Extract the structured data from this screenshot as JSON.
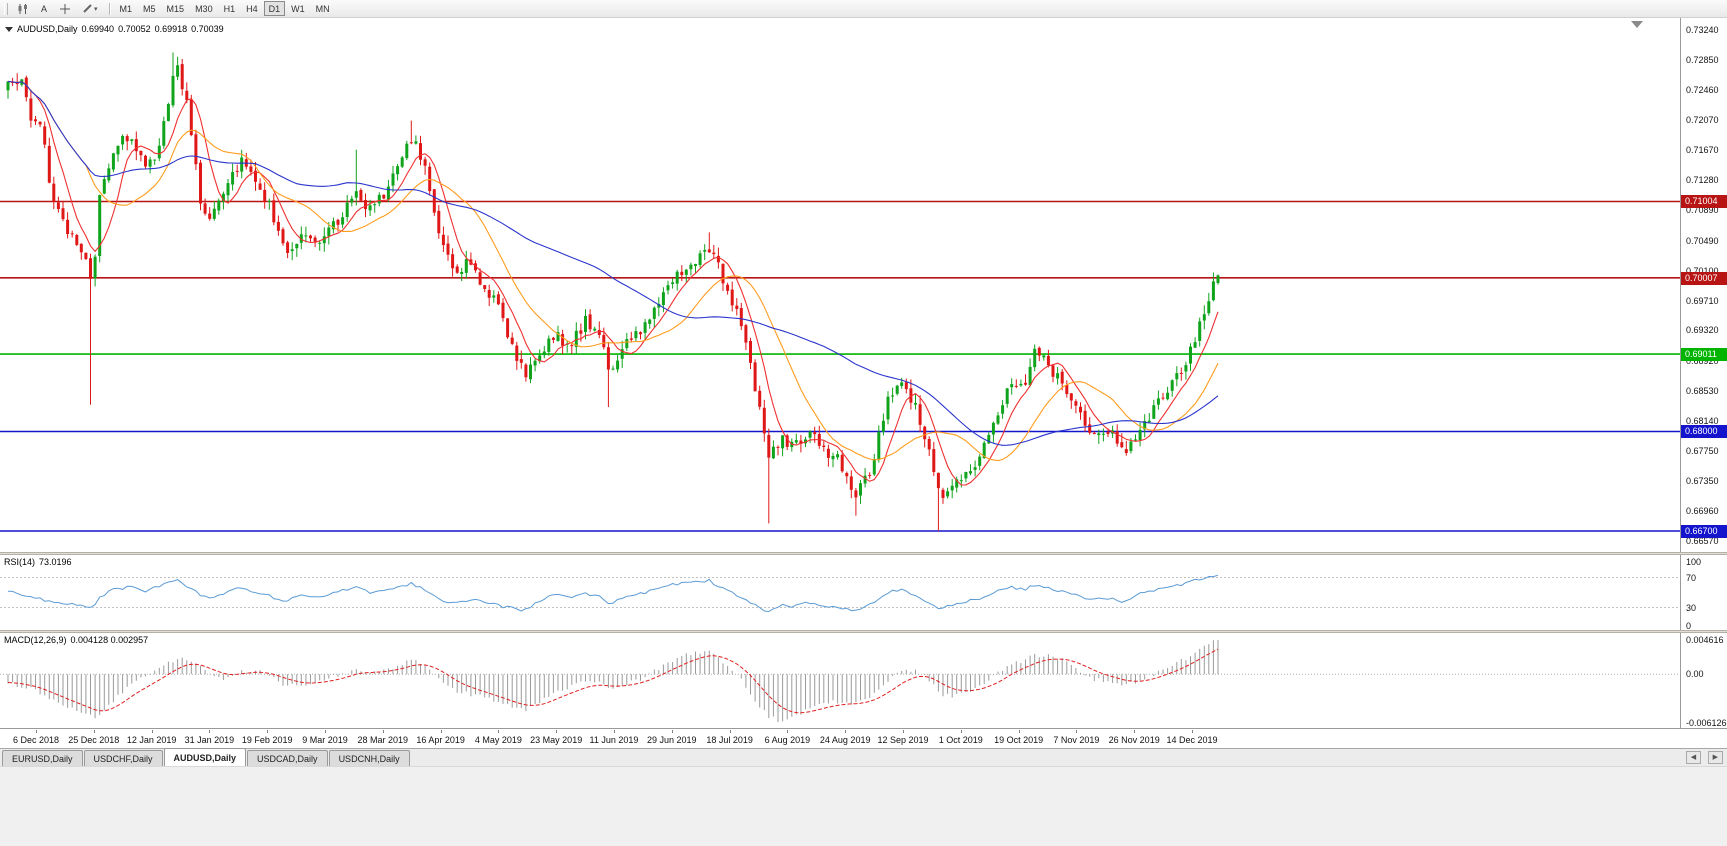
{
  "toolbar": {
    "tools": [
      {
        "name": "candlestick-chart-icon"
      },
      {
        "name": "text-annotation-tool",
        "label": "A"
      },
      {
        "name": "crosshair-tool"
      },
      {
        "name": "drawing-tools-dropdown"
      }
    ],
    "timeframes": [
      "M1",
      "M5",
      "M15",
      "M30",
      "H1",
      "H4",
      "D1",
      "W1",
      "MN"
    ],
    "active_timeframe": "D1"
  },
  "chart": {
    "symbol_period": "AUDUSD,Daily",
    "open": "0.69940",
    "high": "0.70052",
    "low": "0.69918",
    "close": "0.70039"
  },
  "price_scale": {
    "labels": [
      "0.73240",
      "0.72850",
      "0.72460",
      "0.72070",
      "0.71670",
      "0.71280",
      "0.70890",
      "0.70490",
      "0.70100",
      "0.69710",
      "0.69320",
      "0.68920",
      "0.68530",
      "0.68140",
      "0.67750",
      "0.67350",
      "0.66960",
      "0.66570"
    ]
  },
  "rsi": {
    "name": "RSI(14)",
    "value": "73.0196",
    "levels": [
      "100",
      "70",
      "30",
      "0"
    ]
  },
  "macd": {
    "name": "MACD(12,26,9)",
    "values": "0.004128 0.002957",
    "scale_labels": [
      "0.004616",
      "0.00",
      "-0.006126"
    ]
  },
  "date_axis": [
    "6 Dec 2018",
    "25 Dec 2018",
    "12 Jan 2019",
    "31 Jan 2019",
    "19 Feb 2019",
    "9 Mar 2019",
    "28 Mar 2019",
    "16 Apr 2019",
    "4 May 2019",
    "23 May 2019",
    "11 Jun 2019",
    "29 Jun 2019",
    "18 Jul 2019",
    "6 Aug 2019",
    "24 Aug 2019",
    "12 Sep 2019",
    "1 Oct 2019",
    "19 Oct 2019",
    "7 Nov 2019",
    "26 Nov 2019",
    "14 Dec 2019"
  ],
  "tabs": {
    "items": [
      {
        "label": "EURUSD,Daily",
        "active": false
      },
      {
        "label": "USDCHF,Daily",
        "active": false
      },
      {
        "label": "AUDUSD,Daily",
        "active": true
      },
      {
        "label": "USDCAD,Daily",
        "active": false
      },
      {
        "label": "USDCNH,Daily",
        "active": false
      }
    ]
  },
  "chart_data": {
    "type": "candlestick",
    "symbol": "AUDUSD",
    "period": "Daily",
    "num_candles": 265,
    "last_candle": {
      "o": 0.6994,
      "h": 0.70052,
      "l": 0.69918,
      "c": 0.70039
    },
    "axis": {
      "price_top": 0.734,
      "price_bottom": 0.66426
    },
    "colors": {
      "up": "#10a41c",
      "down": "#df1717",
      "rsi_line": "#5b9bd5",
      "macd_hist": "#9a9a9a",
      "macd_signal": "#e02020"
    },
    "moving_averages": [
      {
        "period": 7,
        "color": "#f03030"
      },
      {
        "period": 18,
        "color": "#ff9c1e"
      },
      {
        "period": 55,
        "color": "#2a35cc"
      }
    ],
    "horizontal_lines": [
      {
        "price": 0.71004,
        "label": "0.71004",
        "color": "#b81414"
      },
      {
        "price": 0.70007,
        "label": "0.70007",
        "color": "#b81414"
      },
      {
        "price": 0.69011,
        "label": "0.69011",
        "color": "#00b400"
      },
      {
        "price": 0.68,
        "label": "0.68000",
        "color": "#1414cc"
      },
      {
        "price": 0.667,
        "label": "0.66700",
        "color": "#1414cc"
      }
    ],
    "price_path": [
      [
        0,
        0.725
      ],
      [
        0.01,
        0.726
      ],
      [
        0.018,
        0.7215
      ],
      [
        0.028,
        0.72
      ],
      [
        0.035,
        0.712
      ],
      [
        0.043,
        0.708
      ],
      [
        0.051,
        0.706
      ],
      [
        0.06,
        0.704
      ],
      [
        0.066,
        0.702
      ],
      [
        0.07,
        0.699
      ],
      [
        0.076,
        0.711
      ],
      [
        0.088,
        0.717
      ],
      [
        0.101,
        0.719
      ],
      [
        0.113,
        0.7145
      ],
      [
        0.122,
        0.716
      ],
      [
        0.132,
        0.723
      ],
      [
        0.138,
        0.728
      ],
      [
        0.146,
        0.7245
      ],
      [
        0.155,
        0.715
      ],
      [
        0.159,
        0.71
      ],
      [
        0.167,
        0.708
      ],
      [
        0.179,
        0.712
      ],
      [
        0.192,
        0.7155
      ],
      [
        0.204,
        0.713
      ],
      [
        0.217,
        0.709
      ],
      [
        0.229,
        0.7035
      ],
      [
        0.245,
        0.706
      ],
      [
        0.258,
        0.705
      ],
      [
        0.274,
        0.708
      ],
      [
        0.287,
        0.7115
      ],
      [
        0.299,
        0.709
      ],
      [
        0.312,
        0.711
      ],
      [
        0.324,
        0.715
      ],
      [
        0.334,
        0.7185
      ],
      [
        0.345,
        0.714
      ],
      [
        0.357,
        0.706
      ],
      [
        0.369,
        0.701
      ],
      [
        0.382,
        0.702
      ],
      [
        0.394,
        0.699
      ],
      [
        0.407,
        0.6955
      ],
      [
        0.419,
        0.6905
      ],
      [
        0.427,
        0.6875
      ],
      [
        0.44,
        0.69
      ],
      [
        0.452,
        0.693
      ],
      [
        0.464,
        0.691
      ],
      [
        0.477,
        0.6945
      ],
      [
        0.489,
        0.693
      ],
      [
        0.497,
        0.6875
      ],
      [
        0.51,
        0.692
      ],
      [
        0.522,
        0.693
      ],
      [
        0.535,
        0.696
      ],
      [
        0.547,
        0.699
      ],
      [
        0.56,
        0.7015
      ],
      [
        0.572,
        0.703
      ],
      [
        0.58,
        0.704
      ],
      [
        0.588,
        0.701
      ],
      [
        0.601,
        0.696
      ],
      [
        0.613,
        0.689
      ],
      [
        0.621,
        0.683
      ],
      [
        0.628,
        0.6765
      ],
      [
        0.638,
        0.679
      ],
      [
        0.65,
        0.678
      ],
      [
        0.663,
        0.68
      ],
      [
        0.675,
        0.6775
      ],
      [
        0.688,
        0.676
      ],
      [
        0.7,
        0.672
      ],
      [
        0.712,
        0.6745
      ],
      [
        0.725,
        0.683
      ],
      [
        0.737,
        0.687
      ],
      [
        0.75,
        0.683
      ],
      [
        0.762,
        0.677
      ],
      [
        0.77,
        0.6715
      ],
      [
        0.779,
        0.6725
      ],
      [
        0.791,
        0.675
      ],
      [
        0.803,
        0.6765
      ],
      [
        0.816,
        0.681
      ],
      [
        0.828,
        0.687
      ],
      [
        0.84,
        0.6855
      ],
      [
        0.849,
        0.6915
      ],
      [
        0.861,
        0.688
      ],
      [
        0.874,
        0.686
      ],
      [
        0.886,
        0.682
      ],
      [
        0.898,
        0.679
      ],
      [
        0.911,
        0.68
      ],
      [
        0.923,
        0.677
      ],
      [
        0.936,
        0.681
      ],
      [
        0.948,
        0.683
      ],
      [
        0.96,
        0.6855
      ],
      [
        0.973,
        0.6885
      ],
      [
        0.981,
        0.692
      ],
      [
        0.989,
        0.696
      ],
      [
        0.995,
        0.699
      ],
      [
        1,
        0.7004
      ]
    ],
    "wick_events": [
      {
        "t": 0.07,
        "low": 0.6835
      },
      {
        "t": 0.138,
        "high": 0.7295
      },
      {
        "t": 0.287,
        "high": 0.7168
      },
      {
        "t": 0.334,
        "high": 0.7206
      },
      {
        "t": 0.427,
        "low": 0.6865
      },
      {
        "t": 0.497,
        "low": 0.6832
      },
      {
        "t": 0.58,
        "high": 0.706
      },
      {
        "t": 0.628,
        "low": 0.668
      },
      {
        "t": 0.7,
        "low": 0.669
      },
      {
        "t": 0.77,
        "low": 0.667
      }
    ],
    "rsi": {
      "period": 14,
      "current": 73.0196,
      "levels": [
        70,
        30
      ],
      "path": [
        [
          0,
          52
        ],
        [
          0.018,
          45
        ],
        [
          0.035,
          38
        ],
        [
          0.051,
          35
        ],
        [
          0.066,
          32
        ],
        [
          0.07,
          29
        ],
        [
          0.076,
          44
        ],
        [
          0.088,
          54
        ],
        [
          0.101,
          58
        ],
        [
          0.113,
          51
        ],
        [
          0.132,
          63
        ],
        [
          0.138,
          67
        ],
        [
          0.146,
          61
        ],
        [
          0.159,
          47
        ],
        [
          0.167,
          43
        ],
        [
          0.179,
          50
        ],
        [
          0.192,
          56
        ],
        [
          0.204,
          51
        ],
        [
          0.217,
          45
        ],
        [
          0.229,
          38
        ],
        [
          0.245,
          47
        ],
        [
          0.258,
          45
        ],
        [
          0.274,
          52
        ],
        [
          0.287,
          58
        ],
        [
          0.299,
          49
        ],
        [
          0.312,
          53
        ],
        [
          0.324,
          58
        ],
        [
          0.334,
          62
        ],
        [
          0.345,
          52
        ],
        [
          0.357,
          41
        ],
        [
          0.369,
          36
        ],
        [
          0.382,
          41
        ],
        [
          0.394,
          36
        ],
        [
          0.407,
          32
        ],
        [
          0.419,
          28
        ],
        [
          0.427,
          26
        ],
        [
          0.44,
          39
        ],
        [
          0.452,
          47
        ],
        [
          0.464,
          42
        ],
        [
          0.477,
          49
        ],
        [
          0.489,
          44
        ],
        [
          0.497,
          34
        ],
        [
          0.51,
          45
        ],
        [
          0.522,
          48
        ],
        [
          0.535,
          54
        ],
        [
          0.547,
          60
        ],
        [
          0.56,
          64
        ],
        [
          0.572,
          65
        ],
        [
          0.58,
          66
        ],
        [
          0.588,
          57
        ],
        [
          0.601,
          47
        ],
        [
          0.613,
          37
        ],
        [
          0.621,
          29
        ],
        [
          0.628,
          23
        ],
        [
          0.638,
          33
        ],
        [
          0.65,
          31
        ],
        [
          0.663,
          37
        ],
        [
          0.675,
          32
        ],
        [
          0.688,
          30
        ],
        [
          0.7,
          26
        ],
        [
          0.712,
          34
        ],
        [
          0.725,
          48
        ],
        [
          0.737,
          55
        ],
        [
          0.75,
          46
        ],
        [
          0.762,
          37
        ],
        [
          0.77,
          29
        ],
        [
          0.779,
          33
        ],
        [
          0.791,
          38
        ],
        [
          0.803,
          42
        ],
        [
          0.816,
          50
        ],
        [
          0.828,
          58
        ],
        [
          0.84,
          53
        ],
        [
          0.849,
          61
        ],
        [
          0.861,
          55
        ],
        [
          0.874,
          51
        ],
        [
          0.886,
          44
        ],
        [
          0.898,
          40
        ],
        [
          0.911,
          43
        ],
        [
          0.923,
          37
        ],
        [
          0.936,
          49
        ],
        [
          0.948,
          53
        ],
        [
          0.96,
          57
        ],
        [
          0.973,
          62
        ],
        [
          0.981,
          66
        ],
        [
          0.989,
          69
        ],
        [
          1,
          73
        ]
      ]
    },
    "macd": {
      "fast": 12,
      "slow": 26,
      "signal_period": 9,
      "current_macd": 0.004128,
      "current_signal": 0.002957,
      "scale_max": 0.004616,
      "scale_min": -0.006126,
      "path": [
        [
          0,
          -0.001
        ],
        [
          0.02,
          -0.0018
        ],
        [
          0.035,
          -0.003
        ],
        [
          0.051,
          -0.004
        ],
        [
          0.066,
          -0.0048
        ],
        [
          0.072,
          -0.0052
        ],
        [
          0.08,
          -0.0044
        ],
        [
          0.088,
          -0.003
        ],
        [
          0.101,
          -0.0012
        ],
        [
          0.113,
          -0.0004
        ],
        [
          0.125,
          0.0006
        ],
        [
          0.138,
          0.0018
        ],
        [
          0.146,
          0.0021
        ],
        [
          0.159,
          0.0008
        ],
        [
          0.167,
          -0.0002
        ],
        [
          0.179,
          -0.0007
        ],
        [
          0.192,
          0.0003
        ],
        [
          0.204,
          0.0005
        ],
        [
          0.217,
          -0.0003
        ],
        [
          0.229,
          -0.0013
        ],
        [
          0.245,
          -0.0014
        ],
        [
          0.258,
          -0.0008
        ],
        [
          0.274,
          -0.0001
        ],
        [
          0.287,
          0.0007
        ],
        [
          0.299,
          0.0003
        ],
        [
          0.312,
          0.0005
        ],
        [
          0.324,
          0.0011
        ],
        [
          0.334,
          0.0017
        ],
        [
          0.345,
          0.001
        ],
        [
          0.357,
          -0.0006
        ],
        [
          0.369,
          -0.0021
        ],
        [
          0.382,
          -0.0024
        ],
        [
          0.394,
          -0.0028
        ],
        [
          0.407,
          -0.0035
        ],
        [
          0.419,
          -0.0041
        ],
        [
          0.427,
          -0.0043
        ],
        [
          0.44,
          -0.0034
        ],
        [
          0.452,
          -0.0021
        ],
        [
          0.464,
          -0.0015
        ],
        [
          0.477,
          -0.0008
        ],
        [
          0.489,
          -0.0011
        ],
        [
          0.497,
          -0.0017
        ],
        [
          0.51,
          -0.0012
        ],
        [
          0.522,
          -0.0006
        ],
        [
          0.535,
          0.0005
        ],
        [
          0.547,
          0.0015
        ],
        [
          0.56,
          0.0023
        ],
        [
          0.572,
          0.0027
        ],
        [
          0.58,
          0.0027
        ],
        [
          0.588,
          0.0018
        ],
        [
          0.601,
          0.0002
        ],
        [
          0.613,
          -0.0021
        ],
        [
          0.621,
          -0.0039
        ],
        [
          0.628,
          -0.005
        ],
        [
          0.638,
          -0.0057
        ],
        [
          0.65,
          -0.0052
        ],
        [
          0.663,
          -0.0041
        ],
        [
          0.675,
          -0.0035
        ],
        [
          0.688,
          -0.0033
        ],
        [
          0.7,
          -0.0035
        ],
        [
          0.712,
          -0.0028
        ],
        [
          0.725,
          -0.0012
        ],
        [
          0.737,
          0.0003
        ],
        [
          0.75,
          0.0005
        ],
        [
          0.762,
          -0.0008
        ],
        [
          0.77,
          -0.0023
        ],
        [
          0.779,
          -0.0027
        ],
        [
          0.791,
          -0.0022
        ],
        [
          0.803,
          -0.0014
        ],
        [
          0.816,
          -0.0002
        ],
        [
          0.828,
          0.0013
        ],
        [
          0.84,
          0.0017
        ],
        [
          0.849,
          0.0023
        ],
        [
          0.861,
          0.0022
        ],
        [
          0.874,
          0.0016
        ],
        [
          0.886,
          0.0004
        ],
        [
          0.898,
          -0.0006
        ],
        [
          0.911,
          -0.0009
        ],
        [
          0.923,
          -0.0013
        ],
        [
          0.936,
          -0.0008
        ],
        [
          0.948,
          0.0001
        ],
        [
          0.96,
          0.0009
        ],
        [
          0.973,
          0.0019
        ],
        [
          0.981,
          0.0027
        ],
        [
          0.989,
          0.0035
        ],
        [
          1,
          0.0041
        ]
      ]
    }
  }
}
